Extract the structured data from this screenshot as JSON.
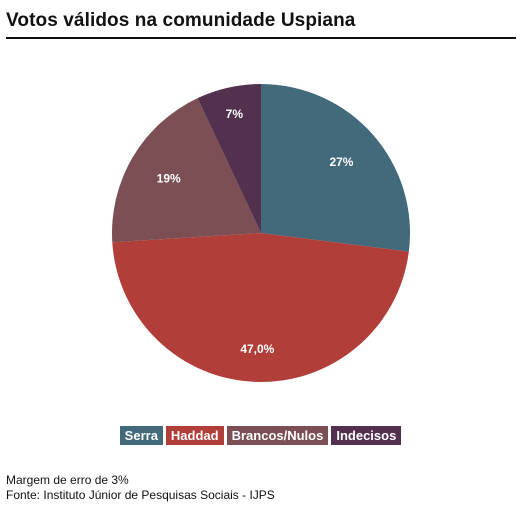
{
  "header": {
    "title": "Votos válidos na comunidade Uspiana"
  },
  "chart_data": {
    "type": "pie",
    "title": "Votos válidos na comunidade Uspiana",
    "start_angle_deg": 0,
    "direction": "clockwise",
    "slices": [
      {
        "name": "Serra",
        "value": 27,
        "label": "27%",
        "color": "#436a7b"
      },
      {
        "name": "Haddad",
        "value": 47,
        "label": "47,0%",
        "color": "#b13e38"
      },
      {
        "name": "Brancos/Nulos",
        "value": 19,
        "label": "19%",
        "color": "#7b4f53"
      },
      {
        "name": "Indecisos",
        "value": 7,
        "label": "7%",
        "color": "#52304e"
      }
    ],
    "legend": {
      "placement": "bottom",
      "entries": [
        "Serra",
        "Haddad",
        "Brancos/Nulos",
        "Indecisos"
      ]
    }
  },
  "footer": {
    "margin_text": "Margem de erro de 3%",
    "source_text": "Fonte: Instituto Júnior de Pesquisas Sociais - IJPS"
  }
}
